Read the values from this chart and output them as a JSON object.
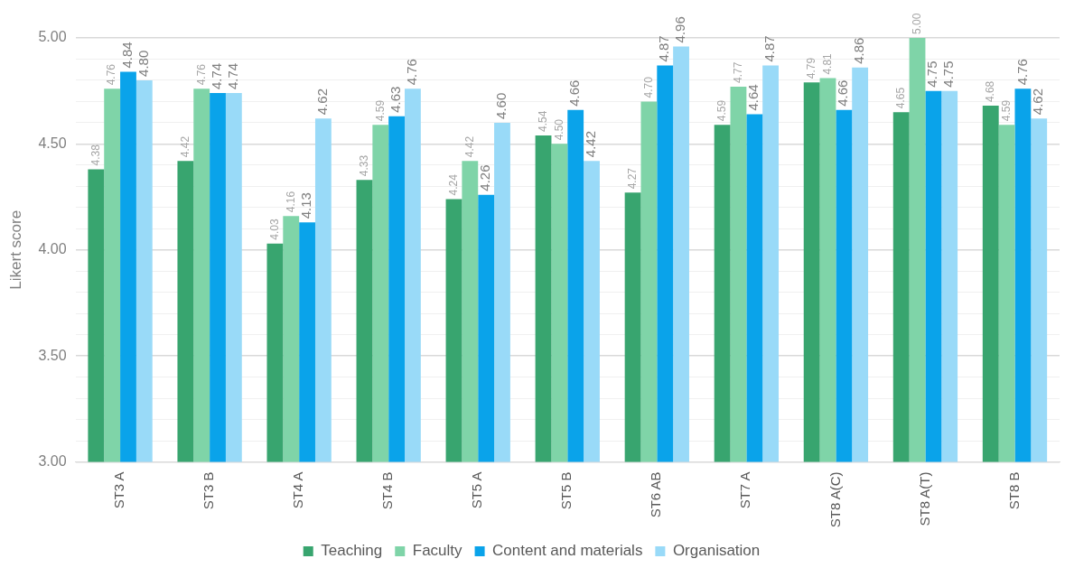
{
  "chart_data": {
    "type": "bar",
    "ylabel": "Likert score",
    "categories": [
      "ST3 A",
      "ST3 B",
      "ST4 A",
      "ST4 B",
      "ST5 A",
      "ST5 B",
      "ST6 AB",
      "ST7 A",
      "ST8 A(C)",
      "ST8 A(T)",
      "ST8 B"
    ],
    "series": [
      {
        "name": "Teaching",
        "color": "#38a56f",
        "values": [
          4.38,
          4.42,
          4.03,
          4.33,
          4.24,
          4.54,
          4.27,
          4.59,
          4.79,
          4.65,
          4.68
        ],
        "value_labels": [
          "4.38",
          "4.42",
          "4.03",
          "4.33",
          "4.24",
          "4.54",
          "4.27",
          "4.59",
          "4.79",
          "4.65",
          "4.68"
        ]
      },
      {
        "name": "Faculty",
        "color": "#7fd4a8",
        "values": [
          4.76,
          4.76,
          4.16,
          4.59,
          4.42,
          4.5,
          4.7,
          4.77,
          4.81,
          5.0,
          4.59
        ],
        "value_labels": [
          "4.76",
          "4.76",
          "4.16",
          "4.59",
          "4.42",
          "4.50",
          "4.70",
          "4.77",
          "4.81",
          "5.00",
          "4.59"
        ]
      },
      {
        "name": "Content and materials",
        "color": "#0aa3ea",
        "values": [
          4.84,
          4.74,
          4.13,
          4.63,
          4.26,
          4.66,
          4.87,
          4.64,
          4.66,
          4.75,
          4.76
        ],
        "value_labels": [
          "4.84",
          "4.74",
          "4.13",
          "4.63",
          "4.26",
          "4.66",
          "4.87",
          "4.64",
          "4.66",
          "4.75",
          "4.76"
        ]
      },
      {
        "name": "Organisation",
        "color": "#99daf8",
        "values": [
          4.8,
          4.74,
          4.62,
          4.76,
          4.6,
          4.42,
          4.96,
          4.87,
          4.86,
          4.75,
          4.62
        ],
        "value_labels": [
          "4.80",
          "4.74",
          "4.62",
          "4.76",
          "4.60",
          "4.42",
          "4.96",
          "4.87",
          "4.86",
          "4.75",
          "4.62"
        ]
      }
    ],
    "ylim": [
      3,
      5
    ],
    "yticks": [
      {
        "value": 3,
        "label": "3.00"
      },
      {
        "value": 3.1,
        "label": null
      },
      {
        "value": 3.2,
        "label": null
      },
      {
        "value": 3.3,
        "label": null
      },
      {
        "value": 3.4,
        "label": null
      },
      {
        "value": 3.5,
        "label": "3.50"
      },
      {
        "value": 3.6,
        "label": null
      },
      {
        "value": 3.7,
        "label": null
      },
      {
        "value": 3.8,
        "label": null
      },
      {
        "value": 3.9,
        "label": null
      },
      {
        "value": 4,
        "label": "4.00"
      },
      {
        "value": 4.1,
        "label": null
      },
      {
        "value": 4.2,
        "label": null
      },
      {
        "value": 4.3,
        "label": null
      },
      {
        "value": 4.4,
        "label": null
      },
      {
        "value": 4.5,
        "label": "4.50"
      },
      {
        "value": 4.6,
        "label": null
      },
      {
        "value": 4.7,
        "label": null
      },
      {
        "value": 4.8,
        "label": null
      },
      {
        "value": 4.9,
        "label": null
      },
      {
        "value": 5,
        "label": "5.00"
      }
    ],
    "grid": "y",
    "legend": "bottom"
  }
}
